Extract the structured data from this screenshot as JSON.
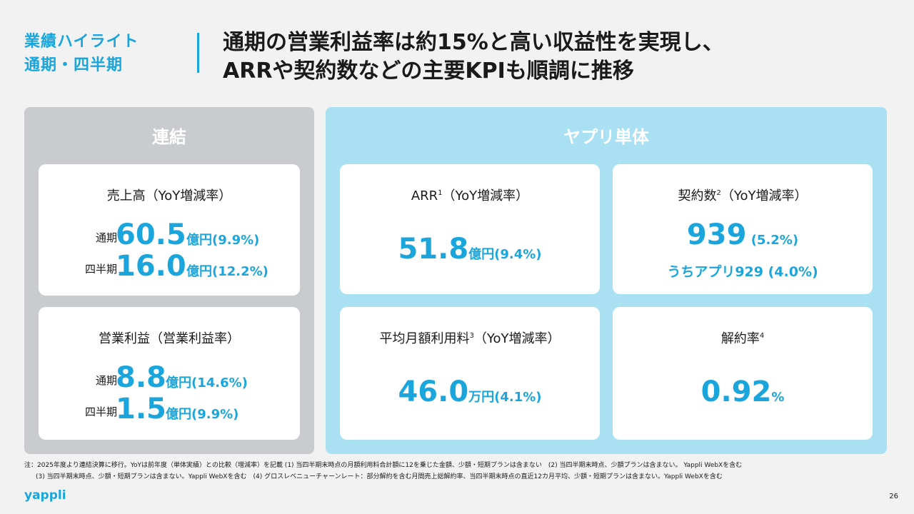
{
  "header": {
    "section_line1": "業績ハイライト",
    "section_line2": "通期・四半期",
    "headline_line1": "通期の営業利益率は約15%と高い収益性を実現し、",
    "headline_line2": "ARRや契約数などの主要KPIも順調に推移"
  },
  "consolidated": {
    "title": "連結",
    "revenue": {
      "title": "売上高（YoY増減率）",
      "full_year_label": "通期",
      "full_year_value": "60.5",
      "full_year_unit": "億円(9.9%)",
      "quarter_label": "四半期",
      "quarter_value": "16.0",
      "quarter_unit": "億円(12.2%)"
    },
    "operating_profit": {
      "title": "営業利益（営業利益率）",
      "full_year_label": "通期",
      "full_year_value": "8.8",
      "full_year_unit": "億円(14.6%)",
      "quarter_label": "四半期",
      "quarter_value": "1.5",
      "quarter_unit": "億円(9.9%)"
    }
  },
  "yappli": {
    "title": "ヤプリ単体",
    "arr": {
      "title": "ARR",
      "sup": "1",
      "suffix": "（YoY増減率）",
      "value": "51.8",
      "unit": "億円(9.4%)"
    },
    "contracts": {
      "title": "契約数",
      "sup": "2",
      "suffix": "（YoY増減率）",
      "value": "939",
      "unit": " (5.2%)",
      "sub": "うちアプリ929 (4.0%)"
    },
    "arpu": {
      "title": "平均月額利用料",
      "sup": "3",
      "suffix": "（YoY増減率）",
      "value": "46.0",
      "unit": "万円(4.1%)"
    },
    "churn": {
      "title": "解約率",
      "sup": "4",
      "value": "0.92",
      "unit": "%"
    }
  },
  "footnote": {
    "line1": "注：2025年度より連結決算に移行。YoYは前年度（単体実績）との比較（増減率）を記載 (1) 当四半期末時点の月額利用料合計額に12を乗じた金額、少額・短期プランは含まない　(2) 当四半期末時点、少額プランは含まない。 Yappli WebXを含む",
    "line2": "(3) 当四半期末時点、少額・短期プランは含まない。Yappli WebXを含む　(4) グロスレベニューチャーンレート：部分解約を含む月間売上総解約率、当四半期末時点の直近12カ月平均、少額・短期プランは含まない。Yappli WebXを含む"
  },
  "logo": "yappli",
  "page_number": "26"
}
